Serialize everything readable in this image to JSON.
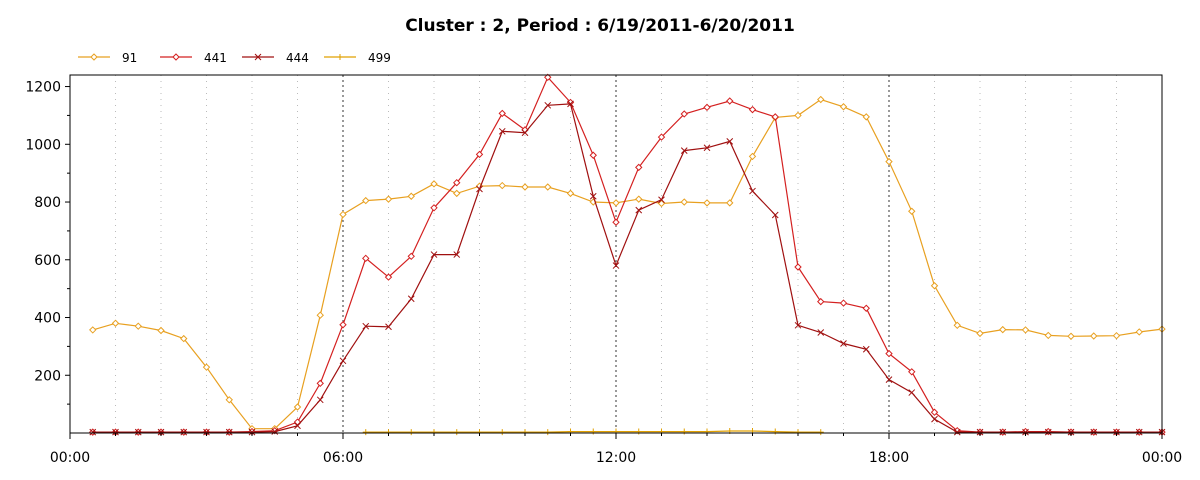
{
  "chart_data": {
    "type": "line",
    "title": "Cluster : 2, Period : 6/19/2011-6/20/2011",
    "xlabel": "",
    "ylabel": "",
    "x_ticks": [
      "00:00",
      "06:00",
      "12:00",
      "18:00",
      "00:00"
    ],
    "y_ticks": [
      200,
      400,
      600,
      800,
      1000,
      1200
    ],
    "ylim": [
      0,
      1240
    ],
    "grid": true,
    "legend_position": "top-left",
    "x_unit": "hours",
    "series": [
      {
        "name": "91",
        "color": "#E8A020",
        "marker": "diamond",
        "points": [
          [
            0.5,
            357
          ],
          [
            1,
            380
          ],
          [
            1.5,
            370
          ],
          [
            2,
            355
          ],
          [
            2.5,
            327
          ],
          [
            3,
            228
          ],
          [
            3.5,
            115
          ],
          [
            4,
            15
          ],
          [
            4.5,
            15
          ],
          [
            5,
            90
          ],
          [
            5.5,
            408
          ],
          [
            6,
            757
          ],
          [
            6.5,
            805
          ],
          [
            7,
            810
          ],
          [
            7.5,
            820
          ],
          [
            8,
            863
          ],
          [
            8.5,
            830
          ],
          [
            9,
            855
          ],
          [
            9.5,
            857
          ],
          [
            10,
            852
          ],
          [
            10.5,
            852
          ],
          [
            11,
            830
          ],
          [
            11.5,
            800
          ],
          [
            12,
            797
          ],
          [
            12.5,
            810
          ],
          [
            13,
            795
          ],
          [
            13.5,
            800
          ],
          [
            14,
            797
          ],
          [
            14.5,
            797
          ],
          [
            15,
            958
          ],
          [
            15.5,
            1093
          ],
          [
            16,
            1100
          ],
          [
            16.5,
            1155
          ],
          [
            17,
            1130
          ],
          [
            17.5,
            1095
          ],
          [
            18,
            940
          ],
          [
            18.5,
            768
          ],
          [
            19,
            510
          ],
          [
            19.5,
            373
          ],
          [
            20,
            345
          ],
          [
            20.5,
            358
          ],
          [
            21,
            357
          ],
          [
            21.5,
            338
          ],
          [
            22,
            335
          ],
          [
            22.5,
            336
          ],
          [
            23,
            337
          ],
          [
            23.5,
            350
          ],
          [
            24,
            360
          ]
        ]
      },
      {
        "name": "441",
        "color": "#D42020",
        "marker": "diamond",
        "points": [
          [
            0.5,
            3
          ],
          [
            1,
            3
          ],
          [
            1.5,
            3
          ],
          [
            2,
            3
          ],
          [
            2.5,
            3
          ],
          [
            3,
            3
          ],
          [
            3.5,
            3
          ],
          [
            4,
            5
          ],
          [
            4.5,
            8
          ],
          [
            5,
            38
          ],
          [
            5.5,
            172
          ],
          [
            6,
            375
          ],
          [
            6.5,
            605
          ],
          [
            7,
            540
          ],
          [
            7.5,
            612
          ],
          [
            8,
            780
          ],
          [
            8.5,
            867
          ],
          [
            9,
            965
          ],
          [
            9.5,
            1107
          ],
          [
            10,
            1050
          ],
          [
            10.5,
            1232
          ],
          [
            11,
            1145
          ],
          [
            11.5,
            962
          ],
          [
            12,
            730
          ],
          [
            12.5,
            920
          ],
          [
            13,
            1025
          ],
          [
            13.5,
            1105
          ],
          [
            14,
            1128
          ],
          [
            14.5,
            1150
          ],
          [
            15,
            1120
          ],
          [
            15.5,
            1095
          ],
          [
            16,
            575
          ],
          [
            16.5,
            455
          ],
          [
            17,
            450
          ],
          [
            17.5,
            432
          ],
          [
            18,
            275
          ],
          [
            18.5,
            212
          ],
          [
            19,
            72
          ],
          [
            19.5,
            8
          ],
          [
            20,
            3
          ],
          [
            20.5,
            3
          ],
          [
            21,
            5
          ],
          [
            21.5,
            5
          ],
          [
            22,
            3
          ],
          [
            22.5,
            3
          ],
          [
            23,
            3
          ],
          [
            23.5,
            3
          ],
          [
            24,
            3
          ]
        ]
      },
      {
        "name": "444",
        "color": "#A01010",
        "marker": "x",
        "points": [
          [
            0.5,
            3
          ],
          [
            1,
            3
          ],
          [
            1.5,
            3
          ],
          [
            2,
            3
          ],
          [
            2.5,
            3
          ],
          [
            3,
            3
          ],
          [
            3.5,
            3
          ],
          [
            4,
            3
          ],
          [
            4.5,
            5
          ],
          [
            5,
            25
          ],
          [
            5.5,
            115
          ],
          [
            6,
            250
          ],
          [
            6.5,
            370
          ],
          [
            7,
            368
          ],
          [
            7.5,
            465
          ],
          [
            8,
            618
          ],
          [
            8.5,
            618
          ],
          [
            9,
            845
          ],
          [
            9.5,
            1045
          ],
          [
            10,
            1040
          ],
          [
            10.5,
            1135
          ],
          [
            11,
            1140
          ],
          [
            11.5,
            820
          ],
          [
            12,
            580
          ],
          [
            12.5,
            772
          ],
          [
            13,
            808
          ],
          [
            13.5,
            978
          ],
          [
            14,
            988
          ],
          [
            14.5,
            1010
          ],
          [
            15,
            838
          ],
          [
            15.5,
            755
          ],
          [
            16,
            373
          ],
          [
            16.5,
            348
          ],
          [
            17,
            310
          ],
          [
            17.5,
            290
          ],
          [
            18,
            185
          ],
          [
            18.5,
            140
          ],
          [
            19,
            48
          ],
          [
            19.5,
            3
          ],
          [
            20,
            3
          ],
          [
            20.5,
            3
          ],
          [
            21,
            3
          ],
          [
            21.5,
            3
          ],
          [
            22,
            3
          ],
          [
            22.5,
            3
          ],
          [
            23,
            3
          ],
          [
            23.5,
            3
          ],
          [
            24,
            3
          ]
        ]
      },
      {
        "name": "499",
        "color": "#E0A000",
        "marker": "plus",
        "points": [
          [
            6.5,
            3
          ],
          [
            7,
            3
          ],
          [
            7.5,
            3
          ],
          [
            8,
            3
          ],
          [
            8.5,
            3
          ],
          [
            9,
            3
          ],
          [
            9.5,
            3
          ],
          [
            10,
            3
          ],
          [
            10.5,
            3
          ],
          [
            11,
            5
          ],
          [
            11.5,
            5
          ],
          [
            12,
            5
          ],
          [
            12.5,
            5
          ],
          [
            13,
            5
          ],
          [
            13.5,
            5
          ],
          [
            14,
            5
          ],
          [
            14.5,
            7
          ],
          [
            15,
            7
          ],
          [
            15.5,
            5
          ],
          [
            16,
            3
          ],
          [
            16.5,
            3
          ]
        ]
      }
    ]
  }
}
